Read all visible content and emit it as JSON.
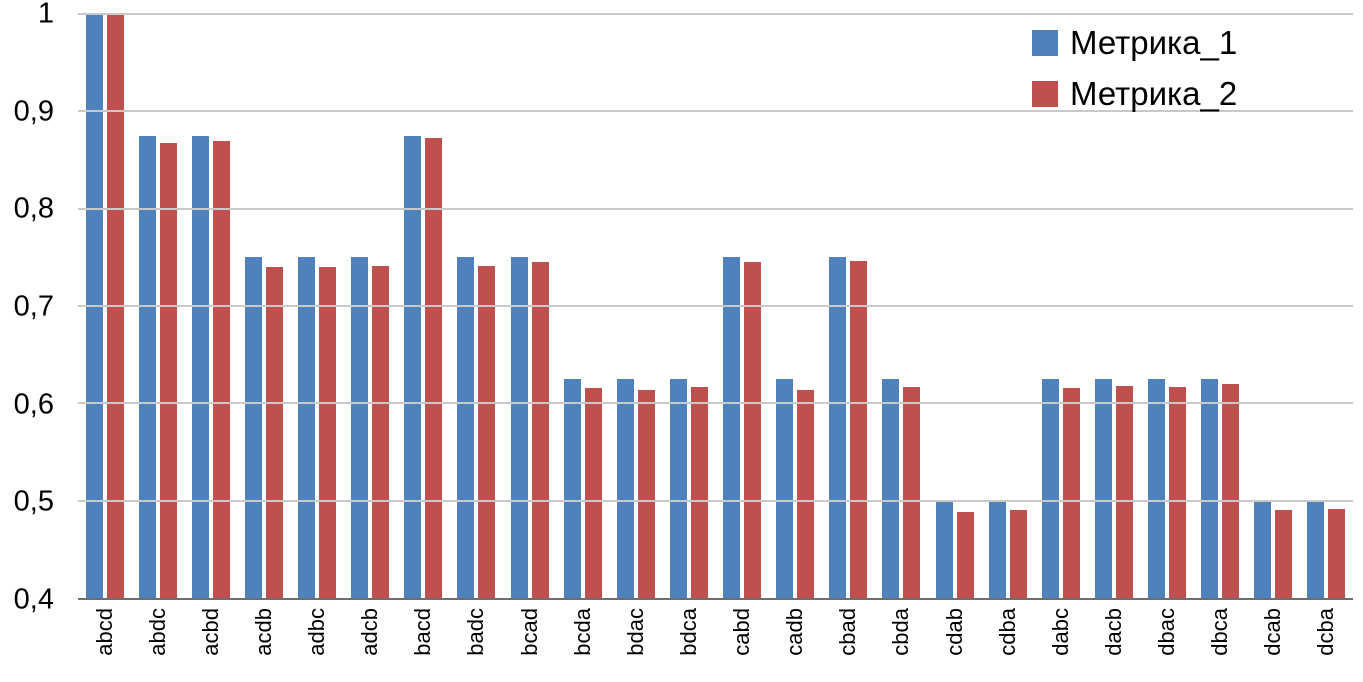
{
  "chart_data": {
    "type": "bar",
    "title": "",
    "xlabel": "",
    "ylabel": "",
    "categories": [
      "abcd",
      "abdc",
      "acbd",
      "acdb",
      "adbc",
      "adcb",
      "bacd",
      "badc",
      "bcad",
      "bcda",
      "bdac",
      "bdca",
      "cabd",
      "cadb",
      "cbad",
      "cbda",
      "cdab",
      "cdba",
      "dabc",
      "dacb",
      "dbac",
      "dbca",
      "dcab",
      "dcba"
    ],
    "series": [
      {
        "name": "Метрика_1",
        "color": "#4F81BD",
        "values": [
          1.0,
          0.875,
          0.875,
          0.75,
          0.75,
          0.75,
          0.875,
          0.75,
          0.75,
          0.625,
          0.625,
          0.625,
          0.75,
          0.625,
          0.75,
          0.625,
          0.5,
          0.5,
          0.625,
          0.625,
          0.625,
          0.625,
          0.5,
          0.5
        ]
      },
      {
        "name": "Метрика_2",
        "color": "#C0504D",
        "values": [
          1.0,
          0.867,
          0.87,
          0.74,
          0.74,
          0.741,
          0.873,
          0.741,
          0.745,
          0.616,
          0.614,
          0.617,
          0.745,
          0.614,
          0.746,
          0.617,
          0.488,
          0.49,
          0.616,
          0.618,
          0.617,
          0.62,
          0.49,
          0.491
        ]
      }
    ],
    "ylim": [
      0.4,
      1.0
    ],
    "ytick_step": 0.1,
    "ytick_labels": [
      "0,4",
      "0,5",
      "0,6",
      "0,7",
      "0,8",
      "0,9",
      "1"
    ],
    "grid": true,
    "legend_position": "top-right"
  }
}
